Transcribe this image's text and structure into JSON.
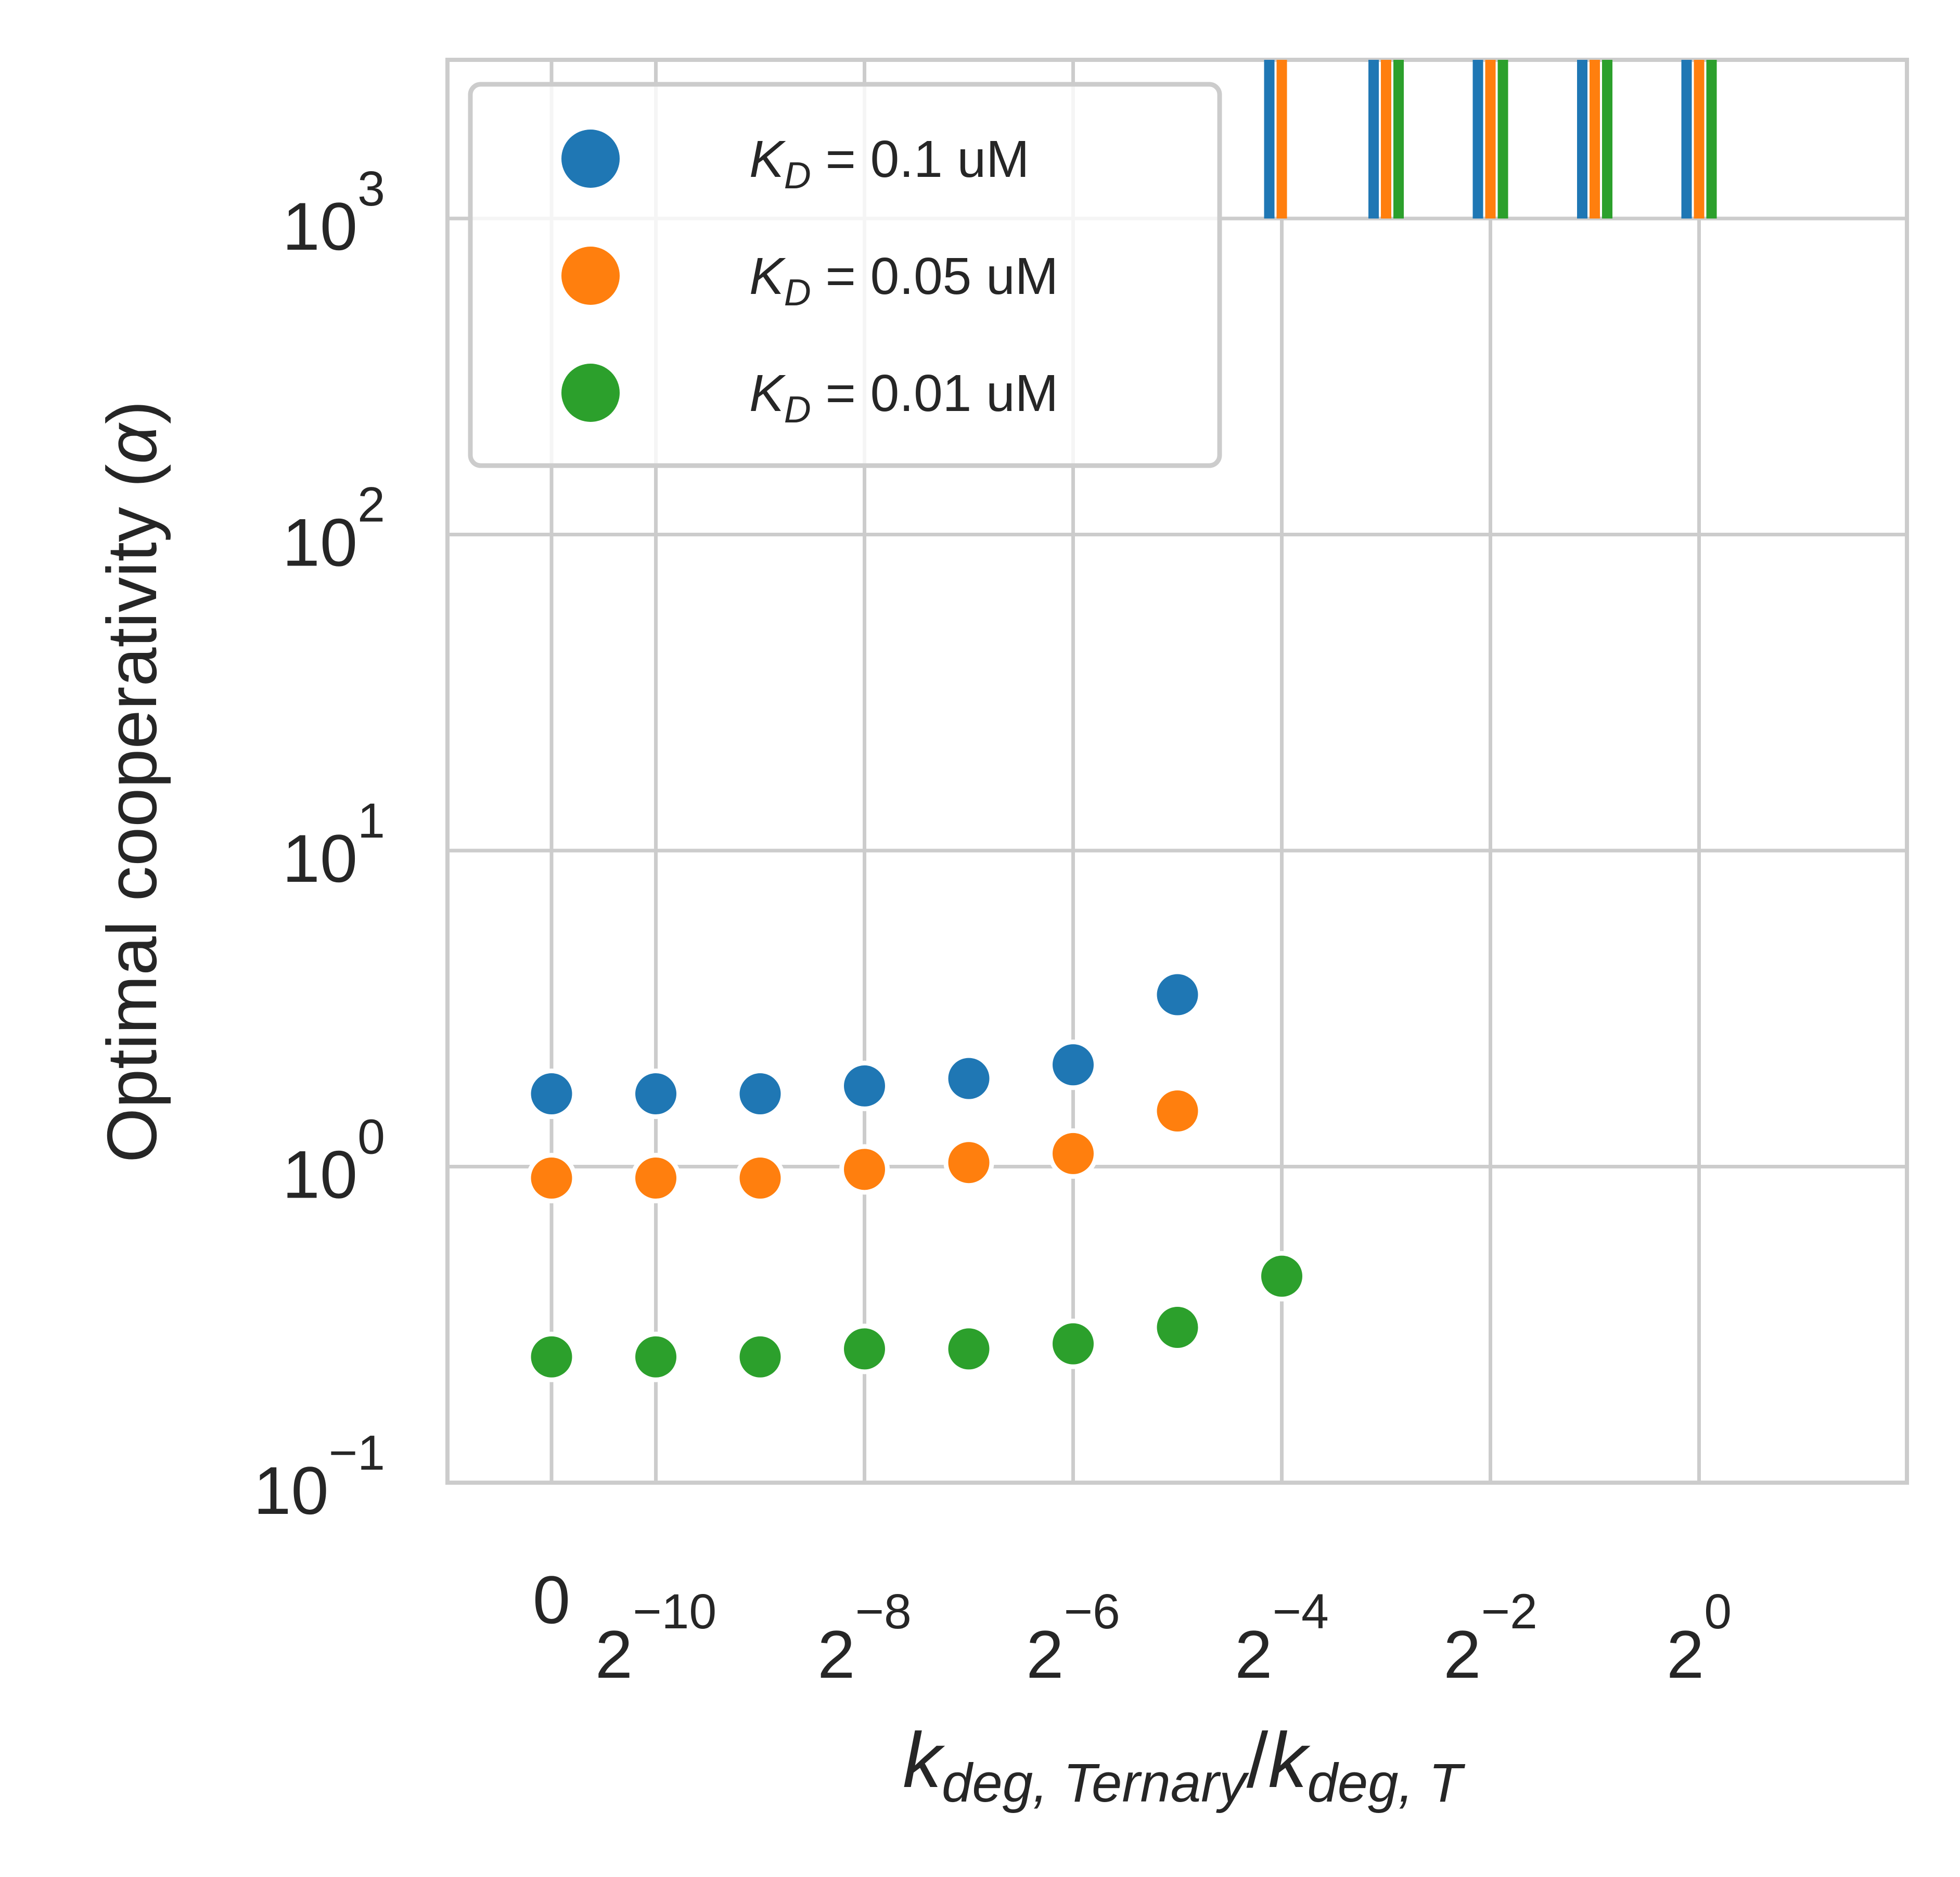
{
  "chart_data": {
    "type": "scatter",
    "title": "",
    "xlabel": {
      "base": "k",
      "numerator_sub": "deg, Ternary",
      "separator": "/",
      "denominator_sub": "deg, T"
    },
    "ylabel": {
      "text": "Optimal cooperativity (",
      "symbol": "α",
      "close": ")"
    },
    "x_scale": "categorical-log2",
    "x_ticks": [
      {
        "base": "0",
        "exp": ""
      },
      {
        "base": "2",
        "exp": "−10"
      },
      {
        "base": "2",
        "exp": "−8"
      },
      {
        "base": "2",
        "exp": "−6"
      },
      {
        "base": "2",
        "exp": "−4"
      },
      {
        "base": "2",
        "exp": "−2"
      },
      {
        "base": "2",
        "exp": "0"
      }
    ],
    "x_categories": [
      "0",
      "2^-10",
      "2^-9",
      "2^-8",
      "2^-7",
      "2^-6",
      "2^-5",
      "2^-4",
      "2^-3",
      "2^-2",
      "2^-1",
      "2^0"
    ],
    "y_scale": "log",
    "ylim": [
      0.1,
      3000
    ],
    "y_ticks": [
      {
        "base": "10",
        "exp": "−1"
      },
      {
        "base": "10",
        "exp": "0"
      },
      {
        "base": "10",
        "exp": "1"
      },
      {
        "base": "10",
        "exp": "2"
      },
      {
        "base": "10",
        "exp": "3"
      }
    ],
    "grid": true,
    "legend_position": "top-left",
    "series": [
      {
        "name": "K_D = 0.1 uM",
        "legend_sub": "D",
        "legend_value": " = 0.1 uM",
        "color": "#1f77b4",
        "x": [
          "0",
          "2^-10",
          "2^-9",
          "2^-8",
          "2^-7",
          "2^-6",
          "2^-5"
        ],
        "y": [
          1.7,
          1.7,
          1.7,
          1.8,
          1.9,
          2.1,
          3.5
        ],
        "beyond_axis_x": [
          "2^-4",
          "2^-3",
          "2^-2",
          "2^-1",
          "2^0"
        ]
      },
      {
        "name": "K_D = 0.05 uM",
        "legend_sub": "D",
        "legend_value": " = 0.05 uM",
        "color": "#ff7f0e",
        "x": [
          "0",
          "2^-10",
          "2^-9",
          "2^-8",
          "2^-7",
          "2^-6",
          "2^-5"
        ],
        "y": [
          0.92,
          0.92,
          0.92,
          0.98,
          1.03,
          1.1,
          1.5
        ],
        "beyond_axis_x": [
          "2^-4",
          "2^-3",
          "2^-2",
          "2^-1",
          "2^0"
        ]
      },
      {
        "name": "K_D = 0.01 uM",
        "legend_sub": "D",
        "legend_value": " = 0.01 uM",
        "color": "#2ca02c",
        "x": [
          "0",
          "2^-10",
          "2^-9",
          "2^-8",
          "2^-7",
          "2^-6",
          "2^-5",
          "2^-4"
        ],
        "y": [
          0.25,
          0.25,
          0.25,
          0.265,
          0.265,
          0.275,
          0.31,
          0.45
        ],
        "beyond_axis_x": [
          "2^-3",
          "2^-2",
          "2^-1",
          "2^0"
        ]
      }
    ],
    "legend_symbol": "K"
  }
}
